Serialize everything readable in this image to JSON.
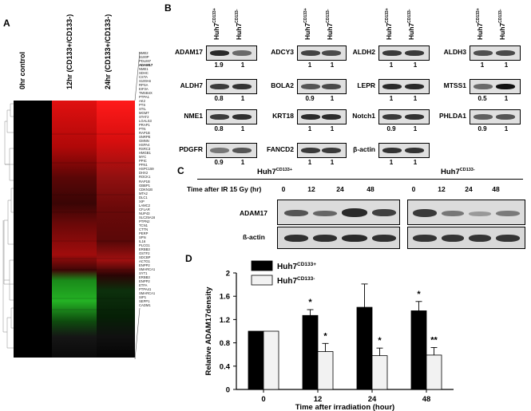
{
  "panels": {
    "a": "A",
    "b": "B",
    "c": "C",
    "d": "D"
  },
  "heatmap": {
    "columns": [
      "0hr control",
      "12hr (CD133+/CD133-)",
      "24hr (CD133+/CD133-)"
    ],
    "genes": [
      "NME2",
      "S100P",
      "PDLIM7",
      "ADAM17",
      "NME1",
      "SDHC",
      "CSTA",
      "S100A6",
      "RPSA",
      "EIF3A",
      "TMSB4X",
      "PTPA1",
      "AK2",
      "PTS",
      "STIL",
      "MGMT",
      "STAT2",
      "LGALS3",
      "PRAP1",
      "PTN",
      "RAP1B",
      "SNRPE",
      "GMNN",
      "HSPA4",
      "RSRC3",
      "HMGB1",
      "MYC",
      "PPIC",
      "PFN1",
      "HSPC159",
      "DHX2",
      "ROCK1",
      "RAP1B",
      "GBBP1",
      "CDKN1B",
      "MTA2",
      "DLC1",
      "XIP",
      "LAMC2",
      "CFLAR",
      "NUP43",
      "SLC25A16",
      "PTPN2",
      "TCN1",
      "CTTN",
      "PERP",
      "SPN",
      "IL16",
      "PLCG1",
      "ERBB3",
      "OSTF2",
      "SDCBP",
      "ACTG1",
      "ENPP2",
      "SMARCA1",
      "SYT1",
      "ERBB3",
      "ENPP2",
      "ETFA",
      "PTPA41",
      "SMARCA1",
      "SIP1",
      "SEPP1",
      "CADM1"
    ],
    "highlight_gene": "ADAM17"
  },
  "panel_b": {
    "headers": [
      "Huh7",
      "CD133+",
      "Huh7",
      "CD133-"
    ],
    "blots": [
      {
        "label": "ADAM17",
        "r1": "1.9",
        "r2": "1"
      },
      {
        "label": "ALDH7",
        "r1": "0.8",
        "r2": "1"
      },
      {
        "label": "NME1",
        "r1": "0.8",
        "r2": "1"
      },
      {
        "label": "PDGFR",
        "r1": "0.9",
        "r2": "1"
      },
      {
        "label": "ADCY3",
        "r1": "1",
        "r2": "1"
      },
      {
        "label": "BOLA2",
        "r1": "0.9",
        "r2": "1"
      },
      {
        "label": "KRT18",
        "r1": "1",
        "r2": "1"
      },
      {
        "label": "FANCD2",
        "r1": "1",
        "r2": "1"
      },
      {
        "label": "ALDH2",
        "r1": "1",
        "r2": "1"
      },
      {
        "label": "LEPR",
        "r1": "1",
        "r2": "1"
      },
      {
        "label": "Notch1",
        "r1": "0.9",
        "r2": "1"
      },
      {
        "label": "β-actin",
        "r1": "1",
        "r2": "1"
      },
      {
        "label": "ALDH3",
        "r1": "1",
        "r2": "1"
      },
      {
        "label": "MTSS1",
        "r1": "0.5",
        "r2": "1"
      },
      {
        "label": "PHLDA1",
        "r1": "0.9",
        "r2": "1"
      }
    ]
  },
  "panel_c": {
    "group1": "Huh7",
    "group1_sup": "CD133+",
    "group2": "Huh7",
    "group2_sup": "CD133-",
    "time_label": "Time after IR 15 Gy (hr)",
    "timepoints": [
      "0",
      "12",
      "24",
      "48",
      "0",
      "12",
      "24",
      "48"
    ],
    "row1": "ADAM17",
    "row2": "ß-actin"
  },
  "chart_data": {
    "type": "bar",
    "categories": [
      "0",
      "12",
      "24",
      "48"
    ],
    "series": [
      {
        "name": "Huh7CD133+",
        "label": "Huh7",
        "sup": "CD133+",
        "color": "#000000",
        "values": [
          1.0,
          1.27,
          1.41,
          1.35
        ],
        "errors": [
          0,
          0.1,
          0.4,
          0.16
        ],
        "marks": [
          "",
          "*",
          "",
          "*"
        ]
      },
      {
        "name": "Huh7CD133-",
        "label": "Huh7",
        "sup": "CD133-",
        "color": "#f2f2f2",
        "values": [
          1.0,
          0.65,
          0.58,
          0.59
        ],
        "errors": [
          0,
          0.14,
          0.13,
          0.13
        ],
        "marks": [
          "",
          "*",
          "*",
          "**"
        ]
      }
    ],
    "xlabel": "Time after irradiation (hour)",
    "ylabel": "Relative ADAM17density",
    "ylim": [
      0,
      2
    ],
    "yticks": [
      "0",
      "0.4",
      "0.8",
      "1.2",
      "1.6",
      "2"
    ]
  }
}
